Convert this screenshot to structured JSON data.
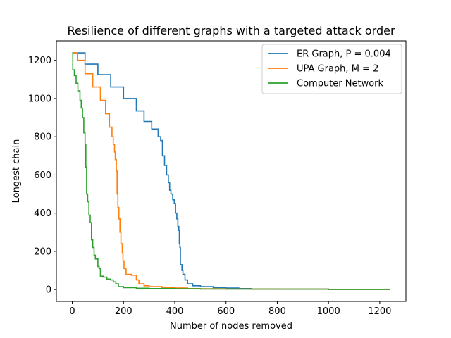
{
  "chart_data": {
    "type": "line",
    "title": "Resilience of different graphs with a targeted attack order",
    "xlabel": "Number of nodes removed",
    "ylabel": "Longest chain",
    "xlim": [
      -62,
      1302
    ],
    "ylim": [
      -62,
      1302
    ],
    "xticks": [
      0,
      200,
      400,
      600,
      800,
      1000,
      1200
    ],
    "yticks": [
      0,
      200,
      400,
      600,
      800,
      1000,
      1200
    ],
    "grid": false,
    "legend_position": "top-right",
    "series": [
      {
        "name": "ER Graph, P = 0.004",
        "color": "#1f77b4",
        "points": [
          [
            0,
            1239
          ],
          [
            50,
            1180
          ],
          [
            100,
            1125
          ],
          [
            150,
            1060
          ],
          [
            200,
            1000
          ],
          [
            250,
            935
          ],
          [
            280,
            880
          ],
          [
            310,
            840
          ],
          [
            335,
            800
          ],
          [
            345,
            780
          ],
          [
            352,
            700
          ],
          [
            360,
            650
          ],
          [
            368,
            600
          ],
          [
            375,
            560
          ],
          [
            380,
            520
          ],
          [
            385,
            500
          ],
          [
            392,
            470
          ],
          [
            398,
            450
          ],
          [
            403,
            400
          ],
          [
            408,
            370
          ],
          [
            412,
            330
          ],
          [
            416,
            310
          ],
          [
            418,
            240
          ],
          [
            420,
            220
          ],
          [
            422,
            130
          ],
          [
            425,
            130
          ],
          [
            428,
            100
          ],
          [
            432,
            80
          ],
          [
            440,
            50
          ],
          [
            450,
            30
          ],
          [
            470,
            20
          ],
          [
            500,
            15
          ],
          [
            550,
            10
          ],
          [
            600,
            8
          ],
          [
            650,
            5
          ],
          [
            700,
            3
          ],
          [
            800,
            2
          ],
          [
            1000,
            1
          ],
          [
            1239,
            1
          ]
        ]
      },
      {
        "name": "UPA Graph, M = 2",
        "color": "#ff7f0e",
        "points": [
          [
            0,
            1239
          ],
          [
            20,
            1200
          ],
          [
            50,
            1130
          ],
          [
            80,
            1060
          ],
          [
            110,
            990
          ],
          [
            130,
            920
          ],
          [
            145,
            850
          ],
          [
            155,
            800
          ],
          [
            160,
            760
          ],
          [
            165,
            720
          ],
          [
            168,
            680
          ],
          [
            172,
            620
          ],
          [
            175,
            500
          ],
          [
            178,
            430
          ],
          [
            182,
            370
          ],
          [
            186,
            300
          ],
          [
            190,
            240
          ],
          [
            195,
            190
          ],
          [
            198,
            150
          ],
          [
            202,
            110
          ],
          [
            210,
            80
          ],
          [
            230,
            75
          ],
          [
            250,
            50
          ],
          [
            260,
            30
          ],
          [
            280,
            20
          ],
          [
            300,
            15
          ],
          [
            350,
            10
          ],
          [
            400,
            8
          ],
          [
            450,
            5
          ],
          [
            500,
            4
          ],
          [
            600,
            3
          ],
          [
            800,
            2
          ],
          [
            1000,
            1
          ],
          [
            1239,
            1
          ]
        ]
      },
      {
        "name": "Computer Network",
        "color": "#2ca02c",
        "points": [
          [
            0,
            1239
          ],
          [
            2,
            1150
          ],
          [
            8,
            1120
          ],
          [
            15,
            1080
          ],
          [
            22,
            1040
          ],
          [
            30,
            990
          ],
          [
            35,
            950
          ],
          [
            40,
            900
          ],
          [
            45,
            820
          ],
          [
            50,
            760
          ],
          [
            53,
            640
          ],
          [
            56,
            500
          ],
          [
            60,
            460
          ],
          [
            65,
            390
          ],
          [
            70,
            350
          ],
          [
            75,
            260
          ],
          [
            80,
            220
          ],
          [
            85,
            180
          ],
          [
            90,
            160
          ],
          [
            100,
            120
          ],
          [
            105,
            110
          ],
          [
            110,
            70
          ],
          [
            120,
            65
          ],
          [
            135,
            55
          ],
          [
            150,
            50
          ],
          [
            160,
            40
          ],
          [
            170,
            30
          ],
          [
            180,
            15
          ],
          [
            200,
            10
          ],
          [
            250,
            7
          ],
          [
            300,
            5
          ],
          [
            400,
            4
          ],
          [
            500,
            3
          ],
          [
            700,
            2
          ],
          [
            1000,
            1
          ],
          [
            1239,
            1
          ]
        ]
      }
    ]
  }
}
